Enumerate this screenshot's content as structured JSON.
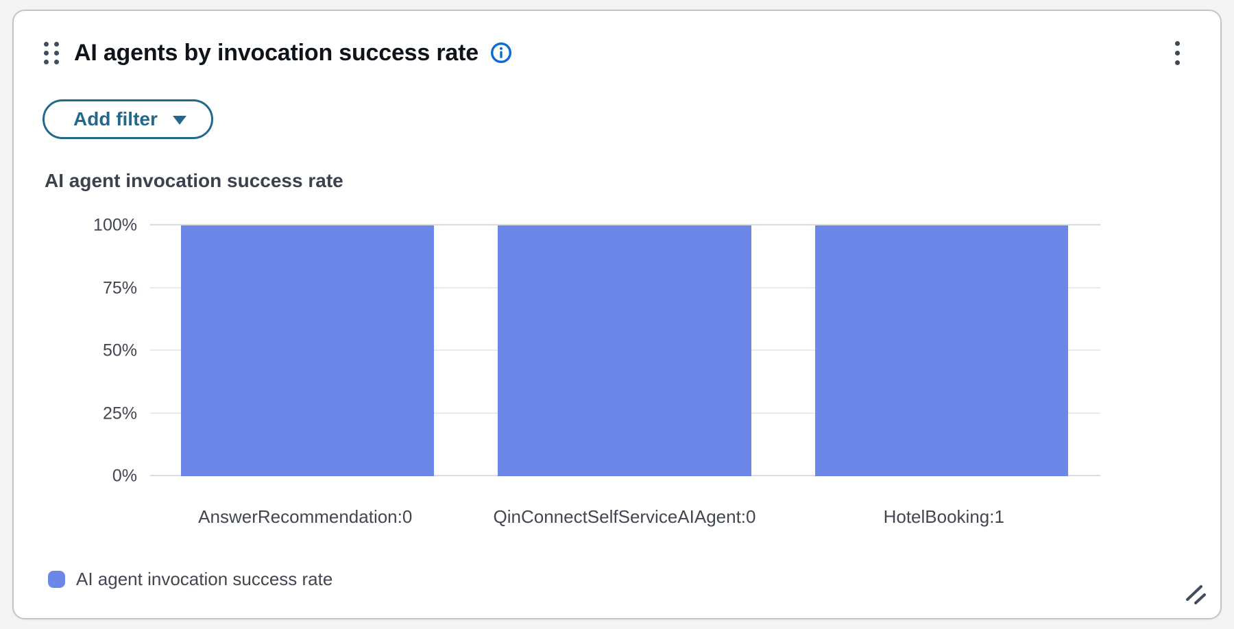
{
  "card": {
    "title": "AI agents by invocation success rate"
  },
  "filter": {
    "add_filter_label": "Add filter"
  },
  "chart_data": {
    "type": "bar",
    "title": "AI agent invocation success rate",
    "categories": [
      "AnswerRecommendation:0",
      "QinConnectSelfServiceAIAgent:0",
      "HotelBooking:1"
    ],
    "values": [
      100,
      100,
      100
    ],
    "value_unit": "%",
    "ylim": [
      0,
      100
    ],
    "yticks": [
      {
        "label": "0%",
        "value": 0
      },
      {
        "label": "25%",
        "value": 25
      },
      {
        "label": "50%",
        "value": 50
      },
      {
        "label": "75%",
        "value": 75
      },
      {
        "label": "100%",
        "value": 100
      }
    ],
    "grid": true,
    "xlabel": "",
    "ylabel": "",
    "legend_position": "bottom",
    "legend": [
      {
        "label": "AI agent invocation success rate",
        "color": "#6d87e8"
      }
    ],
    "bar_color": "#6d87e8"
  },
  "icons": {
    "drag_handle": "drag-handle-icon",
    "info": "info-icon",
    "menu": "kebab-menu-icon",
    "caret": "caret-down-icon",
    "resize": "resize-handle-icon"
  },
  "colors": {
    "accent_button": "#23688c",
    "info_icon": "#0b6bd3",
    "bar": "#6d87e8",
    "card_border": "#c4c5cc",
    "page_background": "#f4f4f5",
    "text_primary": "#0f141a",
    "text_secondary": "#424650"
  }
}
